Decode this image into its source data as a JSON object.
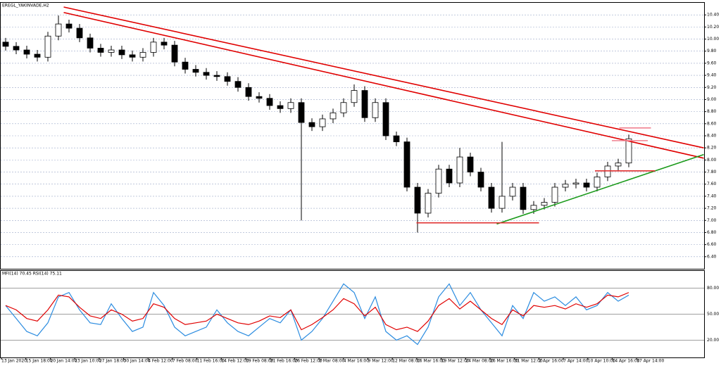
{
  "chart_data": {
    "type": "candlestick",
    "title": "EREGL_YAKINVADE,H2",
    "x_labels": [
      "13 Jan 2020",
      "15 Jan 18:00",
      "20 Jan 14:00",
      "23 Jan 10:00",
      "27 Jan 18:00",
      "30 Jan 14:00",
      "4 Feb 12:00",
      "7 Feb 08:00",
      "11 Feb 16:00",
      "14 Feb 12:00",
      "19 Feb 08:00",
      "21 Feb 16:00",
      "26 Feb 12:00",
      "2 Mar 08:00",
      "4 Mar 16:00",
      "9 Mar 12:00",
      "12 Mar 08:00",
      "16 Mar 16:00",
      "19 Mar 12:00",
      "24 Mar 08:00",
      "26 Mar 16:00",
      "31 Mar 12:00",
      "2 Apr 16:00",
      "7 Apr 14:00",
      "10 Apr 10:00",
      "14 Apr 16:00",
      "17 Apr 14:00"
    ],
    "open": [
      9.95,
      9.88,
      9.82,
      9.75,
      9.7,
      10.05,
      10.25,
      10.18,
      10.02,
      9.85,
      9.78,
      9.82,
      9.74,
      9.7,
      9.78,
      9.95,
      9.9,
      9.62,
      9.5,
      9.45,
      9.4,
      9.38,
      9.3,
      9.2,
      9.05,
      9.02,
      8.9,
      8.85,
      8.95,
      8.62,
      8.55,
      8.68,
      8.78,
      8.95,
      9.15,
      8.7,
      8.95,
      8.4,
      8.3,
      7.55,
      7.12,
      7.45,
      7.85,
      7.62,
      8.05,
      7.8,
      7.55,
      7.2,
      7.4,
      7.55,
      7.18,
      7.25,
      7.3,
      7.55,
      7.6,
      7.62,
      7.55,
      7.72,
      7.9,
      7.95
    ],
    "high": [
      10.02,
      9.95,
      9.89,
      9.82,
      10.12,
      10.39,
      10.32,
      10.25,
      10.09,
      9.92,
      9.89,
      9.89,
      9.81,
      9.85,
      10.02,
      10.02,
      9.97,
      9.69,
      9.57,
      9.52,
      9.47,
      9.45,
      9.37,
      9.27,
      9.12,
      9.09,
      8.97,
      9.02,
      9.02,
      8.69,
      8.75,
      8.85,
      9.02,
      9.25,
      9.22,
      9.02,
      9.02,
      8.47,
      8.37,
      7.62,
      7.52,
      7.92,
      7.92,
      8.2,
      8.12,
      7.87,
      7.62,
      8.3,
      7.62,
      7.62,
      7.32,
      7.37,
      7.62,
      7.67,
      7.69,
      7.69,
      7.79,
      7.97,
      8.02,
      8.42
    ],
    "low": [
      9.81,
      9.75,
      9.68,
      9.63,
      9.63,
      9.98,
      10.11,
      9.95,
      9.78,
      9.71,
      9.71,
      9.67,
      9.63,
      9.63,
      9.71,
      9.83,
      9.55,
      9.43,
      9.38,
      9.33,
      9.31,
      9.23,
      9.13,
      8.98,
      8.95,
      8.83,
      8.78,
      8.78,
      7.0,
      8.48,
      8.48,
      8.61,
      8.71,
      8.88,
      8.63,
      8.63,
      8.33,
      8.23,
      7.48,
      6.8,
      7.05,
      7.38,
      7.55,
      7.55,
      7.73,
      7.48,
      7.13,
      7.13,
      7.33,
      7.11,
      7.11,
      7.18,
      7.23,
      7.48,
      7.53,
      7.48,
      7.48,
      7.65,
      7.83,
      7.88
    ],
    "close": [
      9.88,
      9.82,
      9.75,
      9.7,
      10.05,
      10.25,
      10.18,
      10.02,
      9.85,
      9.78,
      9.82,
      9.74,
      9.7,
      9.78,
      9.95,
      9.9,
      9.62,
      9.5,
      9.45,
      9.4,
      9.38,
      9.3,
      9.2,
      9.05,
      9.02,
      8.9,
      8.85,
      8.95,
      8.62,
      8.55,
      8.68,
      8.78,
      8.95,
      9.15,
      8.7,
      8.95,
      8.4,
      8.3,
      7.55,
      7.12,
      7.45,
      7.85,
      7.62,
      8.05,
      7.8,
      7.55,
      7.2,
      7.4,
      7.55,
      7.18,
      7.25,
      7.3,
      7.55,
      7.6,
      7.62,
      7.55,
      7.72,
      7.9,
      7.95,
      8.35
    ],
    "ylim": [
      6.2,
      10.6
    ],
    "yticks": [
      {
        "value": 6.4,
        "label": "6.40"
      },
      {
        "value": 6.6,
        "label": "6.60"
      },
      {
        "value": 6.8,
        "label": "6.80"
      },
      {
        "value": 7.0,
        "label": "7.00"
      },
      {
        "value": 7.2,
        "label": "7.20"
      },
      {
        "value": 7.4,
        "label": "7.40"
      },
      {
        "value": 7.6,
        "label": "7.60"
      },
      {
        "value": 7.8,
        "label": "7.80"
      },
      {
        "value": 8.0,
        "label": "8.00"
      },
      {
        "value": 8.2,
        "label": "8.20"
      },
      {
        "value": 8.4,
        "label": "8.40"
      },
      {
        "value": 8.6,
        "label": "8.60"
      },
      {
        "value": 8.8,
        "label": "8.80"
      },
      {
        "value": 9.0,
        "label": "9.00"
      },
      {
        "value": 9.2,
        "label": "9.20"
      },
      {
        "value": 9.4,
        "label": "9.40"
      },
      {
        "value": 9.6,
        "label": "9.60"
      },
      {
        "value": 9.8,
        "label": "9.80"
      },
      {
        "value": 10.0,
        "label": "10.00"
      },
      {
        "value": 10.2,
        "label": "10.20"
      },
      {
        "value": 10.4,
        "label": "10.40"
      }
    ],
    "grid": true,
    "trendlines": [
      {
        "color": "#e00000",
        "x": [
          5.5,
          66.1
        ],
        "y": [
          10.53,
          8.2
        ]
      },
      {
        "color": "#e00000",
        "x": [
          5.5,
          66.1
        ],
        "y": [
          10.44,
          8.03
        ]
      },
      {
        "color": "#1a9a1a",
        "x": [
          46.5,
          66.1
        ],
        "y": [
          6.94,
          8.09
        ]
      },
      {
        "color": "#e03030",
        "x": [
          38.9,
          50.5
        ],
        "y": [
          6.96,
          6.96
        ]
      },
      {
        "color": "#e03030",
        "x": [
          55.8,
          61.5
        ],
        "y": [
          7.82,
          7.82
        ]
      },
      {
        "color": "#f08090",
        "x": [
          58.1,
          61.1
        ],
        "y": [
          8.53,
          8.53
        ]
      },
      {
        "color": "#f08090",
        "x": [
          57.4,
          60.8
        ],
        "y": [
          8.32,
          8.32
        ]
      }
    ],
    "indicator": {
      "label": "MFI(14) 70.45 RSI(14) 75.11",
      "ylim": [
        0,
        100
      ],
      "yticks": [
        {
          "value": 20,
          "label": "20.00"
        },
        {
          "value": 50,
          "label": "50.00"
        },
        {
          "value": 80,
          "label": "80.00"
        }
      ],
      "series": [
        {
          "color": "#2b8ce0",
          "values": [
            60,
            45,
            30,
            25,
            40,
            70,
            75,
            55,
            40,
            38,
            62,
            45,
            30,
            35,
            75,
            60,
            35,
            25,
            30,
            35,
            55,
            40,
            30,
            25,
            35,
            45,
            40,
            55,
            20,
            30,
            45,
            65,
            85,
            75,
            45,
            70,
            30,
            20,
            25,
            15,
            35,
            70,
            85,
            60,
            75,
            55,
            40,
            25,
            60,
            45,
            75,
            65,
            70,
            60,
            70,
            55,
            60,
            75,
            65,
            72
          ]
        },
        {
          "color": "#e00000",
          "values": [
            60,
            55,
            45,
            42,
            55,
            72,
            70,
            58,
            48,
            45,
            55,
            50,
            42,
            45,
            62,
            58,
            45,
            38,
            40,
            42,
            50,
            45,
            40,
            38,
            42,
            48,
            46,
            55,
            32,
            38,
            46,
            55,
            68,
            62,
            48,
            58,
            38,
            32,
            35,
            30,
            42,
            60,
            68,
            56,
            65,
            55,
            45,
            38,
            55,
            48,
            60,
            58,
            60,
            56,
            62,
            58,
            62,
            72,
            70,
            75
          ]
        }
      ]
    }
  }
}
